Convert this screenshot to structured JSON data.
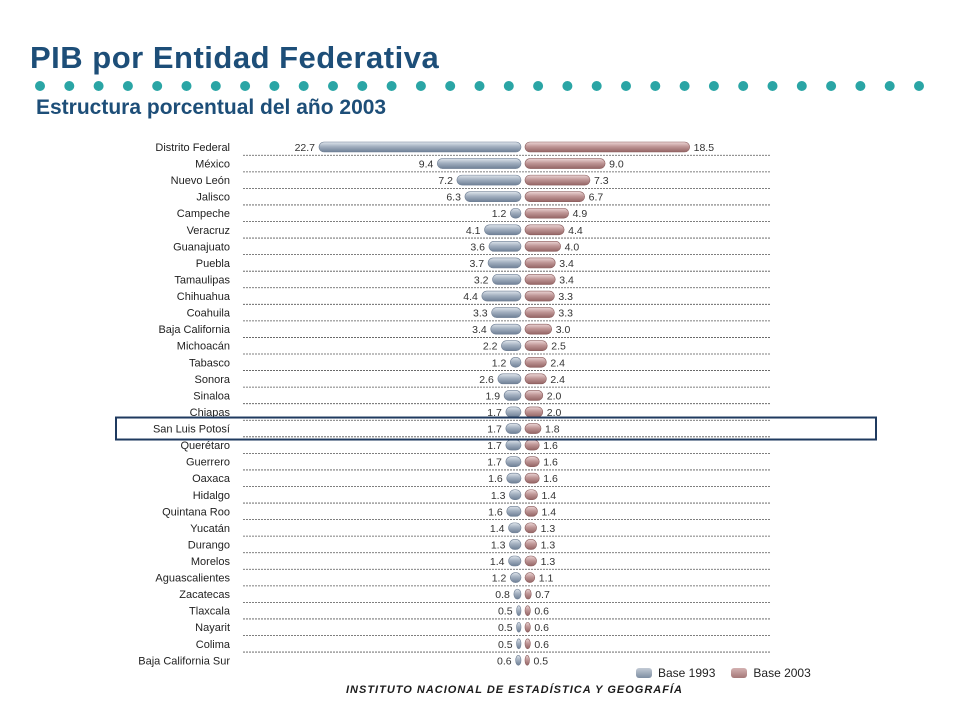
{
  "header": {
    "title": "PIB por Entidad Federativa",
    "subtitle": "Estructura porcentual del año 2003"
  },
  "footer": {
    "institution": "INSTITUTO NACIONAL DE ESTADÍSTICA Y GEOGRAFÍA"
  },
  "legend": {
    "items": [
      "Base 1993",
      "Base 2003"
    ]
  },
  "colors": {
    "title": "#1d4e78",
    "dots": "#2aa5a5",
    "base1993": "#8c9bb0",
    "base2003": "#b48a8a",
    "highlight": "#1f3a5f",
    "gridline": "#555555"
  },
  "highlighted_state": "San Luis Potosí",
  "chart_data": {
    "type": "bar",
    "orientation": "horizontal",
    "layout": "butterfly",
    "grid": false,
    "legend_position": "bottom-right",
    "categories": [
      "Distrito Federal",
      "México",
      "Nuevo León",
      "Jalisco",
      "Campeche",
      "Veracruz",
      "Guanajuato",
      "Puebla",
      "Tamaulipas",
      "Chihuahua",
      "Coahuila",
      "Baja California",
      "Michoacán",
      "Tabasco",
      "Sonora",
      "Sinaloa",
      "Chiapas",
      "San Luis Potosí",
      "Querétaro",
      "Guerrero",
      "Oaxaca",
      "Hidalgo",
      "Quintana Roo",
      "Yucatán",
      "Durango",
      "Morelos",
      "Aguascalientes",
      "Zacatecas",
      "Tlaxcala",
      "Nayarit",
      "Colima",
      "Baja California Sur"
    ],
    "series": [
      {
        "name": "Base 1993",
        "side": "left",
        "values": [
          22.7,
          9.4,
          7.2,
          6.3,
          1.2,
          4.1,
          3.6,
          3.7,
          3.2,
          4.4,
          3.3,
          3.4,
          2.2,
          1.2,
          2.6,
          1.9,
          1.7,
          1.7,
          1.7,
          1.7,
          1.6,
          1.3,
          1.6,
          1.4,
          1.3,
          1.4,
          1.2,
          0.8,
          0.5,
          0.5,
          0.5,
          0.6
        ],
        "labels": [
          "22.7",
          "9.4",
          "7.2",
          "6.3",
          "1.2",
          "4.1",
          "3.6",
          "3.7",
          "3.2",
          "4.4",
          "3.3",
          "3.4",
          "2.2",
          "1.2",
          "2.6",
          "1.9",
          "1.7",
          "1.7",
          "1.7",
          "1.7",
          "1.6",
          "1.3",
          "1.6",
          "1.4",
          "1.3",
          "1.4",
          "1.2",
          "0.8",
          "0.5",
          "0.5",
          "0.5",
          "0.6"
        ]
      },
      {
        "name": "Base 2003",
        "side": "right",
        "values": [
          18.5,
          9.0,
          7.3,
          6.7,
          4.9,
          4.4,
          4.0,
          3.4,
          3.4,
          3.3,
          3.3,
          3.0,
          2.5,
          2.4,
          2.4,
          2.0,
          2.0,
          1.8,
          1.6,
          1.6,
          1.6,
          1.4,
          1.4,
          1.3,
          1.3,
          1.3,
          1.1,
          0.7,
          0.6,
          0.6,
          0.6,
          0.5
        ],
        "labels": [
          "18.5",
          "9.0",
          "7.3",
          "6.7",
          "4.9",
          "4.4",
          "4.0",
          "3.4",
          "3.4",
          "3.3",
          "3.3",
          "3.0",
          "2.5",
          "2.4",
          "2.4",
          "2.0",
          "2.0",
          "1.8",
          "1.6",
          "1.6",
          "1.6",
          "1.4",
          "1.4",
          "1.3",
          "1.3",
          "1.3",
          "1.1",
          "0.7",
          "0.6",
          "0.6",
          "0.6",
          "0.5"
        ]
      }
    ],
    "xlim": [
      0,
      22.7
    ]
  }
}
